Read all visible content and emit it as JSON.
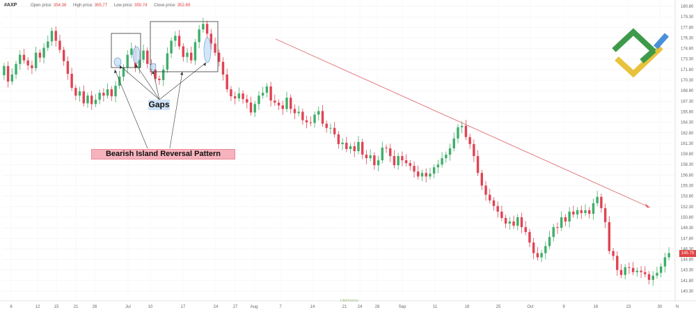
{
  "header": {
    "symbol": "#AXP",
    "open_label": "Open price:",
    "open_value": "354.36",
    "high_label": "High price:",
    "high_value": "355.77",
    "low_label": "Low price:",
    "low_value": "350.74",
    "close_label": "Close price:",
    "close_value": "352.69"
  },
  "annotations": {
    "gaps": "Gaps",
    "pattern": "Bearish Island Reversal Pattern"
  },
  "last_price": "145.75",
  "watermark": "LiteFinance",
  "colors": {
    "up": "#3fae6a",
    "down": "#e04454",
    "trend": "#e06c74",
    "gap_fill": "#cfe3f7",
    "logo_green": "#3e9a4a",
    "logo_blue": "#4a90d9",
    "logo_yellow": "#e8c23c"
  },
  "chart_data": {
    "type": "candlestick",
    "ylim": [
      140.0,
      181.6
    ],
    "y_ticks": [
      "180.80",
      "179.30",
      "177.80",
      "176.30",
      "174.80",
      "173.30",
      "171.80",
      "170.30",
      "168.80",
      "167.30",
      "165.80",
      "164.30",
      "162.80",
      "161.30",
      "159.80",
      "158.30",
      "156.80",
      "155.30",
      "153.80",
      "152.30",
      "150.80",
      "149.30",
      "147.80",
      "146.30",
      "144.80",
      "143.30",
      "141.80",
      "140.30"
    ],
    "x_labels": [
      "6",
      "12",
      "15",
      "21",
      "26",
      "Jul",
      "10",
      "17",
      "24",
      "27",
      "Aug",
      "7",
      "14",
      "21",
      "24",
      "28",
      "Sep",
      "11",
      "18",
      "25",
      "Oct",
      "9",
      "16",
      "23",
      "30",
      "N"
    ],
    "closes": [
      172.3,
      170.1,
      171.1,
      172.6,
      173.9,
      173.1,
      172.4,
      172.0,
      174.2,
      173.5,
      174.9,
      175.8,
      177.3,
      175.9,
      174.6,
      173.0,
      171.2,
      169.2,
      168.1,
      168.7,
      167.0,
      168.1,
      166.9,
      167.5,
      168.5,
      168.1,
      169.0,
      168.0,
      169.5,
      170.8,
      172.1,
      173.9,
      174.8,
      172.1,
      173.2,
      174.5,
      172.6,
      171.8,
      170.5,
      170.3,
      171.8,
      174.1,
      175.9,
      176.6,
      175.1,
      173.6,
      174.2,
      173.1,
      175.7,
      177.5,
      178.3,
      176.9,
      175.5,
      174.2,
      172.9,
      171.1,
      169.0,
      168.0,
      167.7,
      168.4,
      167.6,
      167.1,
      165.7,
      166.9,
      168.1,
      168.5,
      169.4,
      167.4,
      167.1,
      166.7,
      166.2,
      167.8,
      166.2,
      165.6,
      165.8,
      164.6,
      164.3,
      164.2,
      165.4,
      165.9,
      164.1,
      163.5,
      163.5,
      162.6,
      161.2,
      161.4,
      160.5,
      160.9,
      160.2,
      161.5,
      159.7,
      159.2,
      159.6,
      158.2,
      158.9,
      160.7,
      160.6,
      159.5,
      158.2,
      159.5,
      158.9,
      158.5,
      158.1,
      157.3,
      156.6,
      157.1,
      156.6,
      157.0,
      157.9,
      158.3,
      159.2,
      159.7,
      160.6,
      162.0,
      163.6,
      163.8,
      162.2,
      161.2,
      159.5,
      157.1,
      155.3,
      154.0,
      153.2,
      152.4,
      151.6,
      150.7,
      149.9,
      150.2,
      149.6,
      150.8,
      149.4,
      148.7,
      147.2,
      145.7,
      145.1,
      145.7,
      146.7,
      148.0,
      149.4,
      149.3,
      150.8,
      150.2,
      151.6,
      151.2,
      151.8,
      151.4,
      151.8,
      151.3,
      152.8,
      153.7,
      152.1,
      150.1,
      146.0,
      145.3,
      143.3,
      142.6,
      143.7,
      143.6,
      143.0,
      143.2,
      143.0,
      142.7,
      141.9,
      142.5,
      142.9,
      143.8,
      145.1,
      145.7
    ]
  }
}
